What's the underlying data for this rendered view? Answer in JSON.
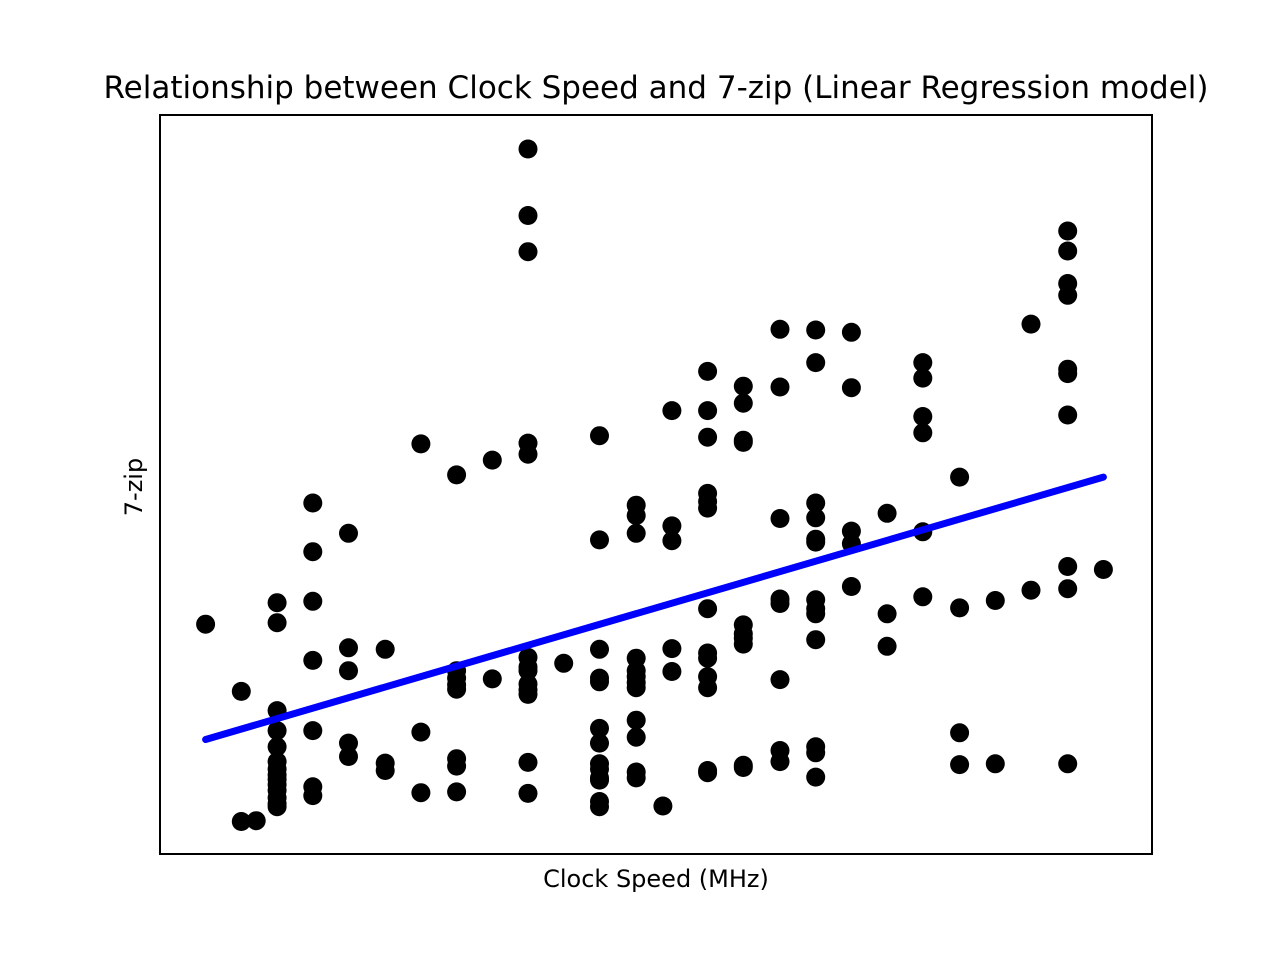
{
  "chart_data": {
    "type": "scatter",
    "title": "Relationship between Clock Speed and 7-zip (Linear Regression model)",
    "xlabel": "Clock Speed (MHz)",
    "ylabel": "7-zip",
    "xlim": [
      0,
      1000
    ],
    "ylim": [
      0,
      1000
    ],
    "show_ticks": false,
    "grid": false,
    "point_color": "#000000",
    "line_color": "#0000ff",
    "series": [
      {
        "type": "scatter",
        "points": [
          [
            46,
            311
          ],
          [
            82,
            220
          ],
          [
            97,
            45
          ],
          [
            82,
            44
          ],
          [
            118,
            340
          ],
          [
            118,
            313
          ],
          [
            118,
            194
          ],
          [
            118,
            167
          ],
          [
            118,
            145
          ],
          [
            118,
            125
          ],
          [
            118,
            115
          ],
          [
            118,
            107
          ],
          [
            118,
            101
          ],
          [
            118,
            94
          ],
          [
            118,
            86
          ],
          [
            118,
            76
          ],
          [
            118,
            68
          ],
          [
            118,
            64
          ],
          [
            154,
            475
          ],
          [
            154,
            409
          ],
          [
            154,
            342
          ],
          [
            154,
            262
          ],
          [
            154,
            167
          ],
          [
            154,
            91
          ],
          [
            154,
            79
          ],
          [
            190,
            434
          ],
          [
            190,
            279
          ],
          [
            190,
            248
          ],
          [
            190,
            150
          ],
          [
            190,
            132
          ],
          [
            227,
            277
          ],
          [
            227,
            123
          ],
          [
            227,
            113
          ],
          [
            263,
            555
          ],
          [
            263,
            165
          ],
          [
            263,
            83
          ],
          [
            299,
            513
          ],
          [
            299,
            248
          ],
          [
            299,
            238
          ],
          [
            299,
            229
          ],
          [
            299,
            223
          ],
          [
            299,
            129
          ],
          [
            299,
            119
          ],
          [
            299,
            84
          ],
          [
            335,
            533
          ],
          [
            335,
            237
          ],
          [
            371,
            954
          ],
          [
            371,
            864
          ],
          [
            371,
            815
          ],
          [
            371,
            556
          ],
          [
            371,
            541
          ],
          [
            371,
            266
          ],
          [
            371,
            253
          ],
          [
            371,
            248
          ],
          [
            371,
            230
          ],
          [
            371,
            222
          ],
          [
            371,
            216
          ],
          [
            371,
            124
          ],
          [
            371,
            82
          ],
          [
            407,
            258
          ],
          [
            443,
            566
          ],
          [
            443,
            425
          ],
          [
            443,
            277
          ],
          [
            443,
            238
          ],
          [
            443,
            233
          ],
          [
            443,
            170
          ],
          [
            443,
            150
          ],
          [
            443,
            122
          ],
          [
            443,
            115
          ],
          [
            443,
            103
          ],
          [
            443,
            100
          ],
          [
            443,
            71
          ],
          [
            443,
            64
          ],
          [
            480,
            472
          ],
          [
            480,
            458
          ],
          [
            480,
            434
          ],
          [
            480,
            265
          ],
          [
            480,
            248
          ],
          [
            480,
            240
          ],
          [
            480,
            232
          ],
          [
            480,
            225
          ],
          [
            480,
            181
          ],
          [
            480,
            158
          ],
          [
            480,
            111
          ],
          [
            480,
            103
          ],
          [
            507,
            65
          ],
          [
            516,
            600
          ],
          [
            516,
            444
          ],
          [
            516,
            424
          ],
          [
            516,
            278
          ],
          [
            516,
            247
          ],
          [
            552,
            653
          ],
          [
            552,
            600
          ],
          [
            552,
            564
          ],
          [
            552,
            488
          ],
          [
            552,
            477
          ],
          [
            552,
            468
          ],
          [
            552,
            332
          ],
          [
            552,
            272
          ],
          [
            552,
            265
          ],
          [
            552,
            240
          ],
          [
            552,
            225
          ],
          [
            552,
            113
          ],
          [
            552,
            110
          ],
          [
            588,
            633
          ],
          [
            588,
            610
          ],
          [
            588,
            560
          ],
          [
            588,
            557
          ],
          [
            588,
            310
          ],
          [
            588,
            298
          ],
          [
            588,
            292
          ],
          [
            588,
            284
          ],
          [
            588,
            120
          ],
          [
            588,
            117
          ],
          [
            625,
            710
          ],
          [
            625,
            632
          ],
          [
            625,
            454
          ],
          [
            625,
            345
          ],
          [
            625,
            339
          ],
          [
            625,
            236
          ],
          [
            625,
            140
          ],
          [
            625,
            125
          ],
          [
            661,
            709
          ],
          [
            661,
            665
          ],
          [
            661,
            475
          ],
          [
            661,
            455
          ],
          [
            661,
            426
          ],
          [
            661,
            422
          ],
          [
            661,
            344
          ],
          [
            661,
            332
          ],
          [
            661,
            325
          ],
          [
            661,
            290
          ],
          [
            661,
            145
          ],
          [
            661,
            137
          ],
          [
            661,
            104
          ],
          [
            697,
            706
          ],
          [
            697,
            631
          ],
          [
            697,
            437
          ],
          [
            697,
            420
          ],
          [
            697,
            362
          ],
          [
            733,
            461
          ],
          [
            733,
            325
          ],
          [
            733,
            281
          ],
          [
            769,
            665
          ],
          [
            769,
            644
          ],
          [
            769,
            592
          ],
          [
            769,
            570
          ],
          [
            769,
            436
          ],
          [
            769,
            348
          ],
          [
            806,
            510
          ],
          [
            806,
            164
          ],
          [
            806,
            333
          ],
          [
            806,
            121
          ],
          [
            842,
            343
          ],
          [
            842,
            122
          ],
          [
            878,
            717
          ],
          [
            878,
            357
          ],
          [
            915,
            843
          ],
          [
            915,
            816
          ],
          [
            915,
            772
          ],
          [
            915,
            756
          ],
          [
            915,
            656
          ],
          [
            915,
            650
          ],
          [
            915,
            594
          ],
          [
            915,
            389
          ],
          [
            915,
            359
          ],
          [
            915,
            122
          ],
          [
            951,
            385
          ]
        ]
      },
      {
        "type": "line",
        "points": [
          [
            46,
            155
          ],
          [
            951,
            510
          ]
        ]
      }
    ]
  }
}
